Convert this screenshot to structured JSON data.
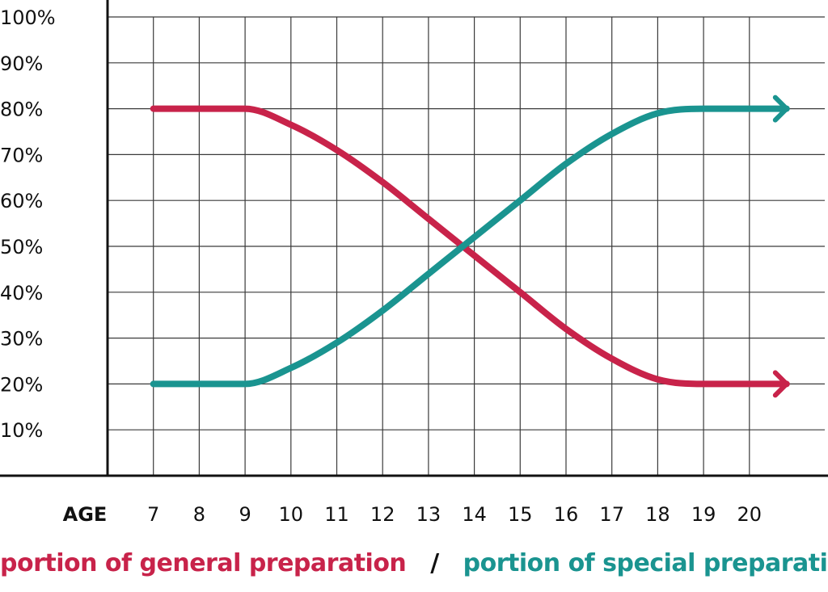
{
  "chart_data": {
    "type": "line",
    "xlabel": "AGE",
    "x": [
      7,
      8,
      9,
      10,
      11,
      12,
      13,
      14,
      15,
      16,
      17,
      18,
      19,
      20
    ],
    "xlim": [
      6,
      21
    ],
    "ylim": [
      0,
      100
    ],
    "yticks": [
      "10%",
      "20%",
      "30%",
      "40%",
      "50%",
      "60%",
      "70%",
      "80%",
      "90%",
      "100%"
    ],
    "grid": true,
    "series": [
      {
        "name": "portion of general preparation",
        "color": "#c8234a",
        "values": [
          80,
          80,
          80,
          76.5,
          71,
          64,
          56,
          48,
          40,
          32,
          25.5,
          21,
          20,
          20
        ],
        "end_arrow": true
      },
      {
        "name": "portion of special preparation",
        "color": "#1a9490",
        "values": [
          20,
          20,
          20,
          23.5,
          29,
          36,
          44,
          52,
          60,
          68,
          74.5,
          79,
          80,
          80
        ],
        "end_arrow": true
      }
    ],
    "legend_position": "bottom",
    "legend_separator": "/"
  }
}
